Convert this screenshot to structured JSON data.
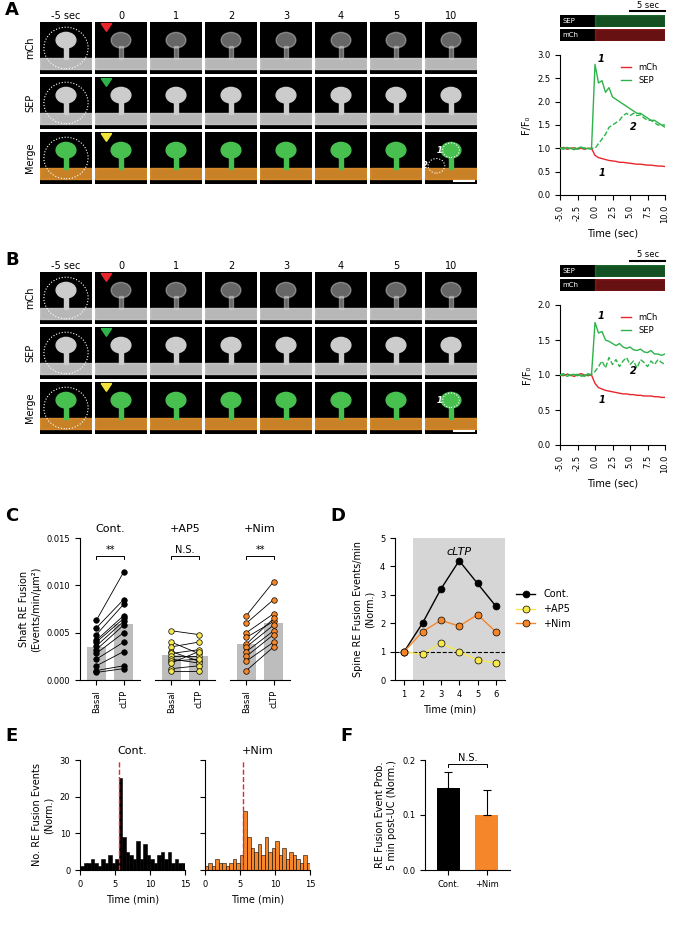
{
  "chart_data": [
    {
      "type": "image_strip",
      "panel": "A",
      "columns": [
        "-5 sec",
        "0",
        "1",
        "2",
        "3",
        "4",
        "5",
        "10"
      ],
      "rows": [
        "mCh",
        "SEP",
        "Merge"
      ],
      "roi_labels": [
        "1",
        "2"
      ]
    },
    {
      "type": "line",
      "strips": [
        "SEP",
        "mCh"
      ],
      "scale_bar": "5 sec",
      "xlabel": "Time (sec)",
      "ylabel": "F/F₀",
      "x": [
        -5.0,
        -4.5,
        -4.0,
        -3.5,
        -3.0,
        -2.5,
        -2.0,
        -1.5,
        -1.0,
        -0.5,
        0.0,
        0.5,
        1.0,
        1.5,
        2.0,
        2.5,
        3.0,
        3.5,
        4.0,
        4.5,
        5.0,
        5.5,
        6.0,
        6.5,
        7.0,
        7.5,
        8.0,
        8.5,
        9.0,
        9.5,
        10.0
      ],
      "series": [
        {
          "name": "mCh",
          "color": "#e8262b",
          "line_style": "solid",
          "values": [
            1.0,
            1.02,
            0.98,
            1.0,
            1.01,
            0.99,
            1.0,
            0.98,
            1.0,
            1.0,
            0.85,
            0.8,
            0.78,
            0.76,
            0.74,
            0.73,
            0.72,
            0.7,
            0.7,
            0.69,
            0.68,
            0.67,
            0.66,
            0.66,
            0.65,
            0.64,
            0.64,
            0.63,
            0.62,
            0.62,
            0.61
          ]
        },
        {
          "name": "SEP",
          "color": "#2db34a",
          "line_style": "solid",
          "values": [
            1.0,
            0.98,
            1.02,
            1.0,
            0.97,
            1.0,
            1.03,
            0.99,
            1.0,
            0.98,
            2.8,
            2.4,
            2.45,
            2.2,
            2.3,
            2.1,
            2.05,
            2.0,
            1.95,
            1.9,
            1.85,
            1.8,
            1.75,
            1.75,
            1.7,
            1.65,
            1.6,
            1.6,
            1.55,
            1.5,
            1.5
          ]
        },
        {
          "color": "#2db34a",
          "line_style": "dashed",
          "values": [
            1.0,
            1.01,
            0.99,
            1.0,
            1.02,
            0.98,
            1.0,
            1.01,
            0.99,
            1.0,
            1.0,
            1.1,
            1.2,
            1.3,
            1.45,
            1.5,
            1.55,
            1.6,
            1.7,
            1.75,
            1.7,
            1.75,
            1.7,
            1.72,
            1.65,
            1.6,
            1.6,
            1.55,
            1.5,
            1.5,
            1.45
          ]
        }
      ],
      "annotations": [
        {
          "text": "1",
          "x": 0.3,
          "y": 2.85
        },
        {
          "text": "2",
          "x": 5.0,
          "y": 1.4
        },
        {
          "text": "1",
          "x": 0.5,
          "y": 0.4
        }
      ],
      "xlim": [
        -5.0,
        10.0
      ],
      "xticks": [
        -5.0,
        -2.5,
        0.0,
        2.5,
        5.0,
        7.5,
        10.0
      ],
      "ylim": [
        0.0,
        3.0
      ],
      "yticks": [
        0.0,
        0.5,
        1.0,
        1.5,
        2.0,
        2.5,
        3.0
      ],
      "legend": "upper right"
    },
    {
      "type": "image_strip",
      "panel": "B",
      "columns": [
        "-5 sec",
        "0",
        "1",
        "2",
        "3",
        "4",
        "5",
        "10"
      ],
      "rows": [
        "mCh",
        "SEP",
        "Merge"
      ],
      "roi_labels": [
        "1"
      ]
    },
    {
      "type": "line",
      "strips": [
        "SEP",
        "mCh"
      ],
      "scale_bar": "5 sec",
      "xlabel": "Time (sec)",
      "ylabel": "F/F₀",
      "x": [
        -5.0,
        -4.5,
        -4.0,
        -3.5,
        -3.0,
        -2.5,
        -2.0,
        -1.5,
        -1.0,
        -0.5,
        0.0,
        0.5,
        1.0,
        1.5,
        2.0,
        2.5,
        3.0,
        3.5,
        4.0,
        4.5,
        5.0,
        5.5,
        6.0,
        6.5,
        7.0,
        7.5,
        8.0,
        8.5,
        9.0,
        9.5,
        10.0
      ],
      "series": [
        {
          "name": "mCh",
          "color": "#e8262b",
          "line_style": "solid",
          "values": [
            1.0,
            0.99,
            1.01,
            1.0,
            0.98,
            1.0,
            1.02,
            1.0,
            0.99,
            1.0,
            0.88,
            0.82,
            0.8,
            0.78,
            0.77,
            0.76,
            0.75,
            0.74,
            0.73,
            0.73,
            0.72,
            0.72,
            0.71,
            0.71,
            0.7,
            0.7,
            0.7,
            0.69,
            0.69,
            0.68,
            0.68
          ]
        },
        {
          "name": "SEP",
          "color": "#2db34a",
          "line_style": "solid",
          "values": [
            1.0,
            1.02,
            0.98,
            1.0,
            1.01,
            0.99,
            1.0,
            0.98,
            1.02,
            1.0,
            1.75,
            1.6,
            1.62,
            1.5,
            1.48,
            1.45,
            1.42,
            1.45,
            1.4,
            1.38,
            1.4,
            1.36,
            1.35,
            1.37,
            1.33,
            1.32,
            1.35,
            1.3,
            1.3,
            1.28,
            1.3
          ]
        },
        {
          "color": "#2db34a",
          "line_style": "dashed",
          "values": [
            1.0,
            1.0,
            1.02,
            0.99,
            1.0,
            1.01,
            0.98,
            1.0,
            1.0,
            1.01,
            1.05,
            1.12,
            1.2,
            1.1,
            1.25,
            1.15,
            1.22,
            1.12,
            1.2,
            1.25,
            1.15,
            1.2,
            1.1,
            1.22,
            1.18,
            1.12,
            1.2,
            1.15,
            1.22,
            1.18,
            1.15
          ]
        }
      ],
      "annotations": [
        {
          "text": "1",
          "x": 0.3,
          "y": 1.8
        },
        {
          "text": "2",
          "x": 5.0,
          "y": 1.02
        },
        {
          "text": "1",
          "x": 0.5,
          "y": 0.6
        }
      ],
      "xlim": [
        -5.0,
        10.0
      ],
      "xticks": [
        -5.0,
        -2.5,
        0.0,
        2.5,
        5.0,
        7.5,
        10.0
      ],
      "ylim": [
        0.0,
        2.0
      ],
      "yticks": [
        0.0,
        0.5,
        1.0,
        1.5,
        2.0
      ],
      "legend": "upper right"
    },
    {
      "type": "paired",
      "panel": "C",
      "ylabel": "Shaft RE Fusion\n(Events/min/μm²)",
      "ylim": [
        0.0,
        0.015
      ],
      "yticks": [
        {
          "value": 0.0,
          "label": "0.000"
        },
        0.005,
        {
          "value": 0.01,
          "label": "0.010"
        },
        0.015
      ],
      "groups": [
        {
          "title": "Cont.",
          "color": "#000000",
          "categories": [
            "Basal",
            "cLTP"
          ],
          "significance": "**",
          "means": [
            0.0035,
            0.0059
          ],
          "points": [
            [
              0.0063,
              0.0055,
              0.0048,
              0.0042,
              0.004,
              0.0036,
              0.0032,
              0.0028,
              0.0022,
              0.0015,
              0.001,
              0.0008
            ],
            [
              0.0114,
              0.0085,
              0.008,
              0.0068,
              0.0065,
              0.0062,
              0.0058,
              0.005,
              0.004,
              0.003,
              0.0015,
              0.0012
            ]
          ]
        },
        {
          "title": "+AP5",
          "color": "#f7e84e",
          "categories": [
            "Basal",
            "cLTP"
          ],
          "significance": "N.S.",
          "means": [
            0.0026,
            0.0025
          ],
          "points": [
            [
              0.0052,
              0.004,
              0.0035,
              0.003,
              0.0028,
              0.0025,
              0.0022,
              0.002,
              0.0018,
              0.0012,
              0.001
            ],
            [
              0.0048,
              0.0028,
              0.004,
              0.002,
              0.0032,
              0.0025,
              0.0018,
              0.0022,
              0.003,
              0.0015,
              0.001
            ]
          ]
        },
        {
          "title": "+Nim",
          "color": "#f5862a",
          "categories": [
            "Basal",
            "cLTP"
          ],
          "significance": "**",
          "means": [
            0.0038,
            0.006
          ],
          "points": [
            [
              0.0068,
              0.006,
              0.005,
              0.0045,
              0.0038,
              0.0035,
              0.003,
              0.0025,
              0.002,
              0.001
            ],
            [
              0.0104,
              0.0085,
              0.007,
              0.0062,
              0.0065,
              0.0058,
              0.0052,
              0.0048,
              0.004,
              0.0035
            ]
          ]
        }
      ]
    },
    {
      "type": "line",
      "panel": "D",
      "xlabel": "Time (min)",
      "ylabel": "Spine RE Fusion Events/min\n(Norm.)",
      "x": [
        1,
        2,
        3,
        4,
        5,
        6
      ],
      "series": [
        {
          "name": "Cont.",
          "color": "#000000",
          "marker": "circle",
          "line_style": "solid",
          "values": [
            1,
            2.0,
            3.2,
            4.2,
            3.4,
            2.6
          ]
        },
        {
          "name": "+AP5",
          "color": "#f7e84e",
          "marker": "circle",
          "line_style": "solid",
          "values": [
            1,
            0.9,
            1.3,
            1.0,
            0.7,
            0.6
          ]
        },
        {
          "name": "+Nim",
          "color": "#f5862a",
          "marker": "circle",
          "line_style": "solid",
          "values": [
            1,
            1.7,
            2.1,
            1.9,
            2.3,
            1.7
          ]
        }
      ],
      "span": [
        1.5,
        6.5
      ],
      "span_label": "cLTP",
      "reference": 1,
      "xlim": [
        0.5,
        6.5
      ],
      "xticks": [
        1,
        2,
        3,
        4,
        5,
        6
      ],
      "ylim": [
        0,
        5
      ],
      "yticks": [
        0,
        1,
        2,
        3,
        4,
        5
      ],
      "legend": "right"
    },
    {
      "type": "histogram",
      "panel": "E",
      "xlabel": "Time (min)",
      "ylabel": "No. RE Fusion Events\n(Norm.)",
      "bins": [
        0.0,
        0.5,
        1.0,
        1.5,
        2.0,
        2.5,
        3.0,
        3.5,
        4.0,
        4.5,
        5.0,
        5.5,
        6.0,
        6.5,
        7.0,
        7.5,
        8.0,
        8.5,
        9.0,
        9.5,
        10.0,
        10.5,
        11.0,
        11.5,
        12.0,
        12.5,
        13.0,
        13.5,
        14.0,
        14.5,
        15.0
      ],
      "event_time": 5.5,
      "series": [
        {
          "name": "Cont.",
          "color": "#000000",
          "values": [
            1,
            2,
            2,
            3,
            2,
            1,
            3,
            2,
            4,
            2,
            3,
            25,
            9,
            5,
            4,
            3,
            8,
            3,
            7,
            4,
            3,
            2,
            4,
            5,
            3,
            5,
            2,
            3,
            2,
            2
          ]
        },
        {
          "name": "+Nim",
          "color": "#f5862a",
          "tick_labels": "x",
          "values": [
            1,
            2,
            1,
            3,
            2,
            2,
            1,
            2,
            3,
            2,
            4,
            16,
            9,
            6,
            5,
            7,
            4,
            9,
            5,
            6,
            8,
            4,
            6,
            3,
            5,
            4,
            3,
            2,
            4,
            2
          ]
        }
      ],
      "xlim": [
        0,
        15
      ],
      "xticks": [
        0,
        5,
        10,
        15
      ],
      "ylim": [
        0,
        30
      ],
      "yticks": [
        0,
        10,
        20,
        30
      ]
    },
    {
      "type": "bar",
      "panel": "F",
      "ylabel": "RE Fusion Event Prob.\n5 min post-UC (Norm.)",
      "categories": [
        "Cont.",
        "+Nim"
      ],
      "values": [
        0.15,
        0.1
      ],
      "errors": [
        0.028,
        0.045
      ],
      "colors": [
        "#000000",
        "#f5862a"
      ],
      "significance": "N.S.",
      "ylim": [
        0.0,
        0.2
      ],
      "yticks": [
        0.0,
        0.1,
        0.2
      ]
    }
  ]
}
